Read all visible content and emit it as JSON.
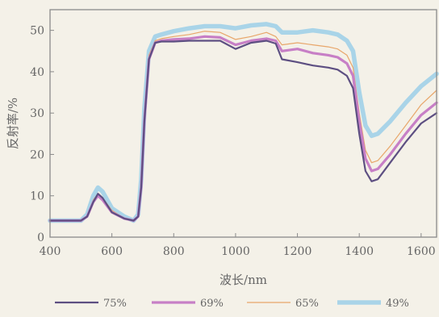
{
  "chart_data": {
    "type": "line",
    "xlabel": "波长/nm",
    "ylabel": "反射率/%",
    "xlim": [
      400,
      1650
    ],
    "ylim": [
      0,
      55
    ],
    "xticks": [
      400,
      600,
      800,
      1000,
      1200,
      1400,
      1600
    ],
    "yticks": [
      0,
      10,
      20,
      30,
      40,
      50
    ],
    "legend_position": "bottom",
    "grid": false,
    "x": [
      400,
      500,
      520,
      540,
      555,
      570,
      600,
      640,
      670,
      685,
      695,
      705,
      720,
      740,
      760,
      800,
      850,
      900,
      950,
      1000,
      1050,
      1100,
      1130,
      1150,
      1200,
      1250,
      1300,
      1330,
      1360,
      1380,
      1400,
      1420,
      1440,
      1460,
      1500,
      1550,
      1600,
      1650
    ],
    "series": [
      {
        "name": "75%",
        "color": "#5d4f82",
        "width": 2.2,
        "values": [
          4,
          4,
          5,
          8.5,
          10.5,
          9.5,
          6,
          4.5,
          4,
          5,
          12,
          28,
          43,
          47,
          47.3,
          47.3,
          47.5,
          47.5,
          47.5,
          45.5,
          47,
          47.5,
          46.8,
          43,
          42.3,
          41.5,
          41,
          40.5,
          39,
          36,
          25,
          16,
          13.5,
          14,
          18,
          23,
          27.5,
          30
        ]
      },
      {
        "name": "69%",
        "color": "#c77fc6",
        "width": 3.2,
        "values": [
          4,
          4,
          5,
          8.5,
          10,
          9,
          6,
          4.5,
          4,
          5,
          12,
          28,
          43,
          47,
          47.5,
          47.8,
          48,
          48.5,
          48.3,
          46.5,
          47.5,
          48,
          47.5,
          45,
          45.5,
          44.5,
          44,
          43.5,
          42,
          39,
          28,
          19,
          16,
          16.5,
          20,
          25,
          29.5,
          32.5
        ]
      },
      {
        "name": "65%",
        "color": "#e8a66a",
        "width": 1.2,
        "values": [
          4,
          4,
          5,
          9,
          10.5,
          9.5,
          6.5,
          4.5,
          4,
          5,
          13,
          29,
          44,
          47.5,
          48,
          48.5,
          49,
          49.8,
          49.5,
          47.8,
          48.5,
          49.5,
          48.5,
          46.5,
          47,
          46.5,
          46,
          45.5,
          44,
          41,
          30,
          21,
          18,
          18.5,
          22,
          27,
          32,
          35.5
        ]
      },
      {
        "name": "49%",
        "color": "#a9d4e8",
        "width": 5.5,
        "values": [
          4,
          4,
          5.5,
          10,
          12,
          11,
          7,
          5,
          4,
          5.5,
          14,
          31,
          45,
          48.5,
          49,
          49.8,
          50.5,
          51,
          51,
          50.5,
          51.2,
          51.5,
          51,
          49.5,
          49.5,
          50,
          49.5,
          49,
          47.5,
          45,
          35,
          27,
          24.5,
          25,
          28,
          32.5,
          36.5,
          39.5
        ]
      }
    ]
  }
}
